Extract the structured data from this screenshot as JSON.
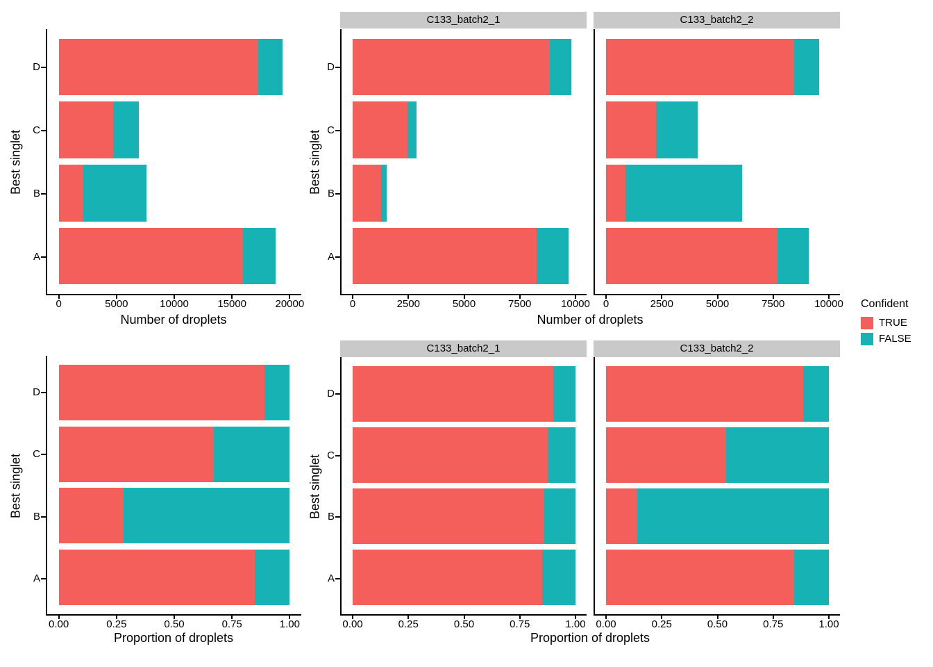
{
  "figure": {
    "background": "#ffffff",
    "categories": [
      "D",
      "C",
      "B",
      "A"
    ],
    "ylabel": "Best singlet"
  },
  "legend": {
    "title": "Confident",
    "items": [
      {
        "label": "TRUE",
        "color": "#F45E5B"
      },
      {
        "label": "FALSE",
        "color": "#17B3B4"
      }
    ]
  },
  "style": {
    "strip_bg": "#C9C9C9",
    "axis_color": "#000000",
    "text_color": "#000000"
  },
  "chart_data": [
    {
      "type": "bar",
      "orientation": "horizontal",
      "stacked": true,
      "xlabel": "Number of droplets",
      "ylabel": "Best singlet",
      "categories": [
        "D",
        "C",
        "B",
        "A"
      ],
      "stack_order": [
        "TRUE",
        "FALSE"
      ],
      "axis": {
        "min": 0,
        "max": 20000,
        "ticks": [
          0,
          5000,
          10000,
          15000,
          20000
        ],
        "tick_labels": [
          "0",
          "5000",
          "10000",
          "15000",
          "20000"
        ]
      },
      "facets": [
        {
          "label": null,
          "rows": [
            {
              "category": "D",
              "TRUE": 17300,
              "FALSE": 2050
            },
            {
              "category": "C",
              "TRUE": 4700,
              "FALSE": 2250
            },
            {
              "category": "B",
              "TRUE": 2100,
              "FALSE": 5500
            },
            {
              "category": "A",
              "TRUE": 15950,
              "FALSE": 2850
            }
          ]
        }
      ]
    },
    {
      "type": "bar",
      "orientation": "horizontal",
      "stacked": true,
      "xlabel": "Number of droplets",
      "ylabel": "Best singlet",
      "categories": [
        "D",
        "C",
        "B",
        "A"
      ],
      "stack_order": [
        "TRUE",
        "FALSE"
      ],
      "axis": {
        "min": 0,
        "max": 10000,
        "ticks": [
          0,
          2500,
          5000,
          7500,
          10000
        ],
        "tick_labels": [
          "0",
          "2500",
          "5000",
          "7500",
          "10000"
        ]
      },
      "facets": [
        {
          "label": "C133_batch2_1",
          "rows": [
            {
              "category": "D",
              "TRUE": 8850,
              "FALSE": 950
            },
            {
              "category": "C",
              "TRUE": 2470,
              "FALSE": 410
            },
            {
              "category": "B",
              "TRUE": 1280,
              "FALSE": 240
            },
            {
              "category": "A",
              "TRUE": 8250,
              "FALSE": 1450
            }
          ]
        },
        {
          "label": "C133_batch2_2",
          "rows": [
            {
              "category": "D",
              "TRUE": 8450,
              "FALSE": 1100
            },
            {
              "category": "C",
              "TRUE": 2230,
              "FALSE": 1870
            },
            {
              "category": "B",
              "TRUE": 860,
              "FALSE": 5240
            },
            {
              "category": "A",
              "TRUE": 7700,
              "FALSE": 1400
            }
          ]
        }
      ]
    },
    {
      "type": "bar",
      "orientation": "horizontal",
      "stacked": true,
      "xlabel": "Proportion of droplets",
      "ylabel": "Best singlet",
      "categories": [
        "D",
        "C",
        "B",
        "A"
      ],
      "stack_order": [
        "TRUE",
        "FALSE"
      ],
      "axis": {
        "min": 0,
        "max": 1,
        "ticks": [
          0,
          0.25,
          0.5,
          0.75,
          1
        ],
        "tick_labels": [
          "0.00",
          "0.25",
          "0.50",
          "0.75",
          "1.00"
        ]
      },
      "facets": [
        {
          "label": null,
          "rows": [
            {
              "category": "D",
              "TRUE": 0.89,
              "FALSE": 0.11
            },
            {
              "category": "C",
              "TRUE": 0.67,
              "FALSE": 0.33
            },
            {
              "category": "B",
              "TRUE": 0.28,
              "FALSE": 0.72
            },
            {
              "category": "A",
              "TRUE": 0.85,
              "FALSE": 0.15
            }
          ]
        }
      ]
    },
    {
      "type": "bar",
      "orientation": "horizontal",
      "stacked": true,
      "xlabel": "Proportion of droplets",
      "ylabel": "Best singlet",
      "categories": [
        "D",
        "C",
        "B",
        "A"
      ],
      "stack_order": [
        "TRUE",
        "FALSE"
      ],
      "axis": {
        "min": 0,
        "max": 1,
        "ticks": [
          0,
          0.25,
          0.5,
          0.75,
          1
        ],
        "tick_labels": [
          "0.00",
          "0.25",
          "0.50",
          "0.75",
          "1.00"
        ]
      },
      "facets": [
        {
          "label": "C133_batch2_1",
          "rows": [
            {
              "category": "D",
              "TRUE": 0.9,
              "FALSE": 0.1
            },
            {
              "category": "C",
              "TRUE": 0.88,
              "FALSE": 0.12
            },
            {
              "category": "B",
              "TRUE": 0.86,
              "FALSE": 0.14
            },
            {
              "category": "A",
              "TRUE": 0.85,
              "FALSE": 0.15
            }
          ]
        },
        {
          "label": "C133_batch2_2",
          "rows": [
            {
              "category": "D",
              "TRUE": 0.885,
              "FALSE": 0.115
            },
            {
              "category": "C",
              "TRUE": 0.54,
              "FALSE": 0.46
            },
            {
              "category": "B",
              "TRUE": 0.14,
              "FALSE": 0.86
            },
            {
              "category": "A",
              "TRUE": 0.845,
              "FALSE": 0.155
            }
          ]
        }
      ]
    }
  ]
}
